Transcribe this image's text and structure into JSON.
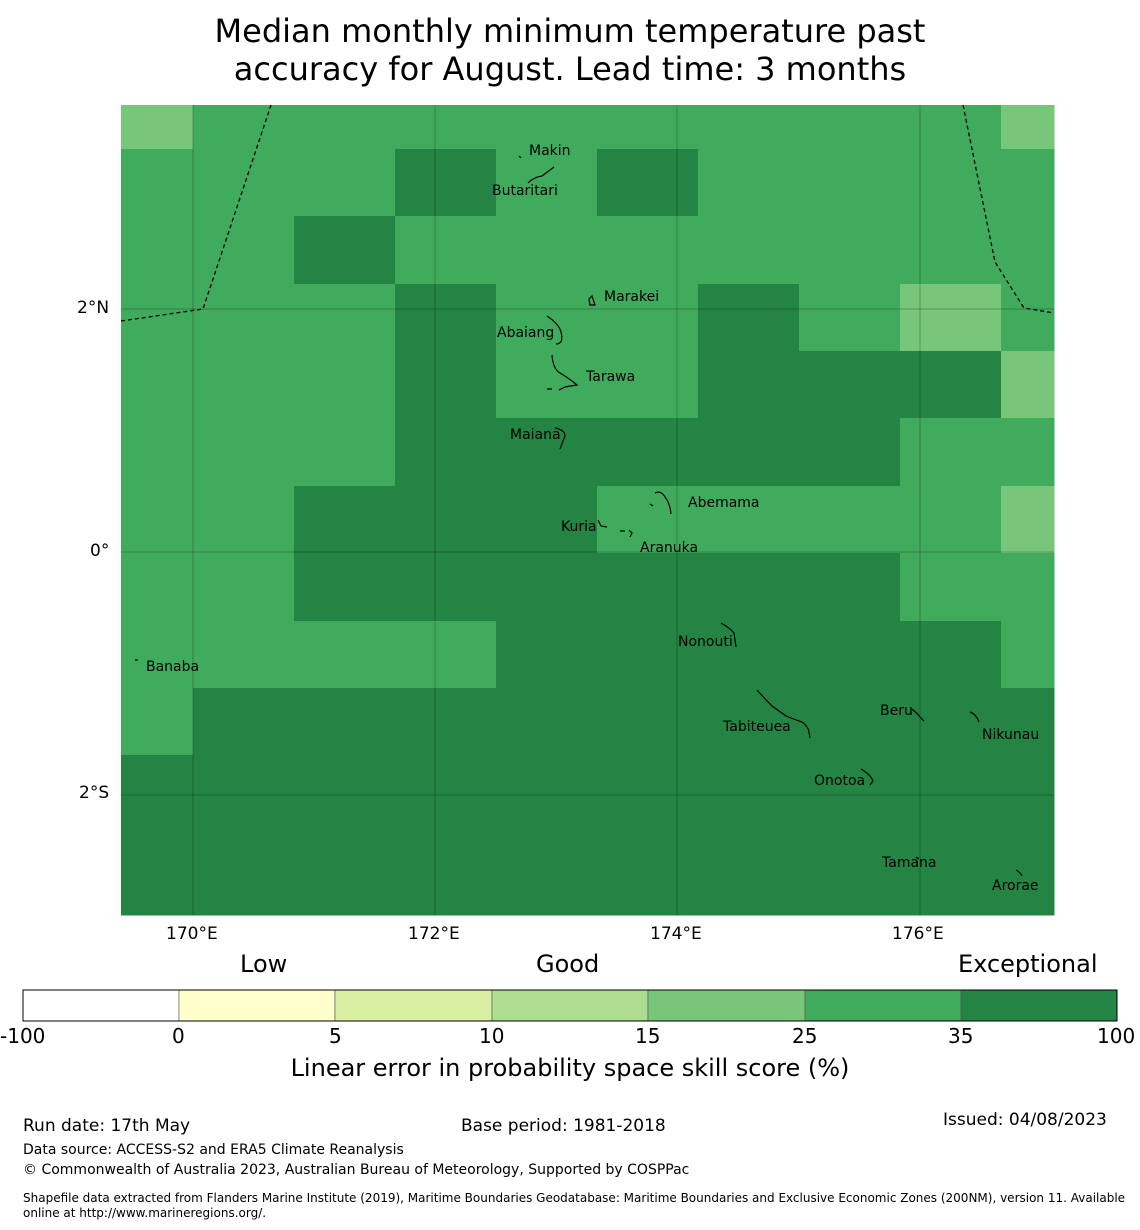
{
  "title": {
    "line1": "Median monthly minimum temperature past",
    "line2": "accuracy for August. Lead time: 3 months"
  },
  "map": {
    "lon_labels": [
      "170°E",
      "172°E",
      "174°E",
      "176°E"
    ],
    "lat_labels": [
      "2°N",
      "0°",
      "2°S"
    ],
    "places": [
      "Makin",
      "Butaritari",
      "Marakei",
      "Abaiang",
      "Tarawa",
      "Maiana",
      "Abemama",
      "Kuria",
      "Aranuka",
      "Nonouti",
      "Banaba",
      "Tabiteuea",
      "Beru",
      "Nikunau",
      "Onotoa",
      "Tamana",
      "Arorae"
    ],
    "grid_classes": [
      [
        4,
        5,
        5,
        5,
        5,
        5,
        5,
        5,
        5,
        5,
        5,
        5,
        5,
        5,
        5,
        5,
        5,
        5,
        4
      ],
      [
        5,
        5,
        5,
        5,
        5,
        6,
        6,
        5,
        5,
        5,
        6,
        6,
        5,
        5,
        5,
        5,
        5,
        5,
        5
      ],
      [
        5,
        5,
        5,
        5,
        6,
        5,
        5,
        5,
        5,
        5,
        5,
        5,
        5,
        5,
        5,
        5,
        5,
        5,
        5
      ],
      [
        5,
        5,
        5,
        5,
        5,
        5,
        6,
        6,
        5,
        5,
        5,
        5,
        6,
        6,
        5,
        5,
        4,
        4,
        5
      ],
      [
        5,
        5,
        5,
        5,
        5,
        5,
        6,
        6,
        5,
        5,
        5,
        5,
        6,
        6,
        6,
        6,
        6,
        6,
        4
      ],
      [
        5,
        5,
        5,
        5,
        5,
        5,
        6,
        6,
        6,
        6,
        6,
        6,
        6,
        6,
        6,
        6,
        5,
        5,
        5
      ],
      [
        5,
        5,
        5,
        5,
        6,
        6,
        6,
        6,
        6,
        6,
        5,
        5,
        5,
        5,
        5,
        5,
        5,
        5,
        4
      ],
      [
        5,
        5,
        5,
        5,
        6,
        6,
        6,
        6,
        6,
        6,
        6,
        6,
        6,
        6,
        6,
        6,
        5,
        5,
        5
      ],
      [
        5,
        5,
        5,
        5,
        5,
        5,
        5,
        5,
        6,
        6,
        6,
        6,
        6,
        6,
        6,
        6,
        6,
        6,
        5
      ],
      [
        5,
        5,
        6,
        6,
        6,
        6,
        6,
        6,
        6,
        6,
        6,
        6,
        6,
        6,
        6,
        6,
        6,
        6,
        6
      ],
      [
        6,
        6,
        6,
        6,
        6,
        6,
        6,
        6,
        6,
        6,
        6,
        6,
        6,
        6,
        6,
        6,
        6,
        6,
        6
      ],
      [
        6,
        6,
        6,
        6,
        6,
        6,
        6,
        6,
        6,
        6,
        6,
        6,
        6,
        6,
        6,
        6,
        6,
        6,
        6
      ]
    ]
  },
  "colorbar": {
    "categories": [
      "Low",
      "Good",
      "Exceptional"
    ],
    "ticks": [
      "-100",
      "0",
      "5",
      "10",
      "15",
      "25",
      "35",
      "100"
    ],
    "colors": [
      "#ffffff",
      "#ffffcc",
      "#d9f0a3",
      "#addd8e",
      "#78c679",
      "#41ab5d",
      "#238443"
    ],
    "label": "Linear error in probability space skill score (%)"
  },
  "footer": {
    "run_date": "Run date: 17th May",
    "base_period": "Base period: 1981-2018",
    "issued": "Issued: 04/08/2023",
    "data_source": "Data source: ACCESS-S2 and ERA5 Climate Reanalysis",
    "copyright": "© Commonwealth of Australia 2023, Australian Bureau of Meteorology, Supported by COSPPac",
    "shapefile_line1": "Shapefile data extracted from Flanders Marine Institute (2019), Maritime Boundaries Geodatabase: Maritime Boundaries and Exclusive Economic Zones (200NM), version 11. Available",
    "shapefile_line2": "online at http://www.marineregions.org/."
  }
}
